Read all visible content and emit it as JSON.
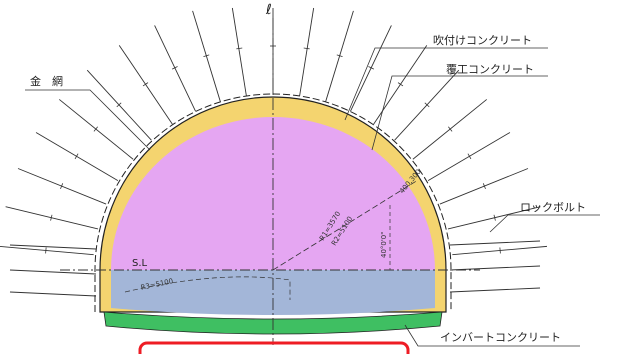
{
  "labels": {
    "centerline": "ℓ",
    "wire_mesh": "金　網",
    "shotcrete": "吹付けコンクリート",
    "lining_concrete": "覆工コンクリート",
    "rock_bolt": "ロックボルト",
    "invert_concrete": "インバートコンクリート",
    "spring_line": "S.L"
  },
  "dimensions": {
    "radius_1": "R1=3570",
    "radius_2": "R2=5100",
    "angle": "40°0'0\"",
    "thickness": "400,300",
    "invert_radius": "R3=5100"
  },
  "colors": {
    "upper_section": "#e5a6f2",
    "lower_section": "#a3b6d8",
    "lining": "#f4d46f",
    "invert": "#3fbf62",
    "highlight_box": "#ee1c24"
  }
}
